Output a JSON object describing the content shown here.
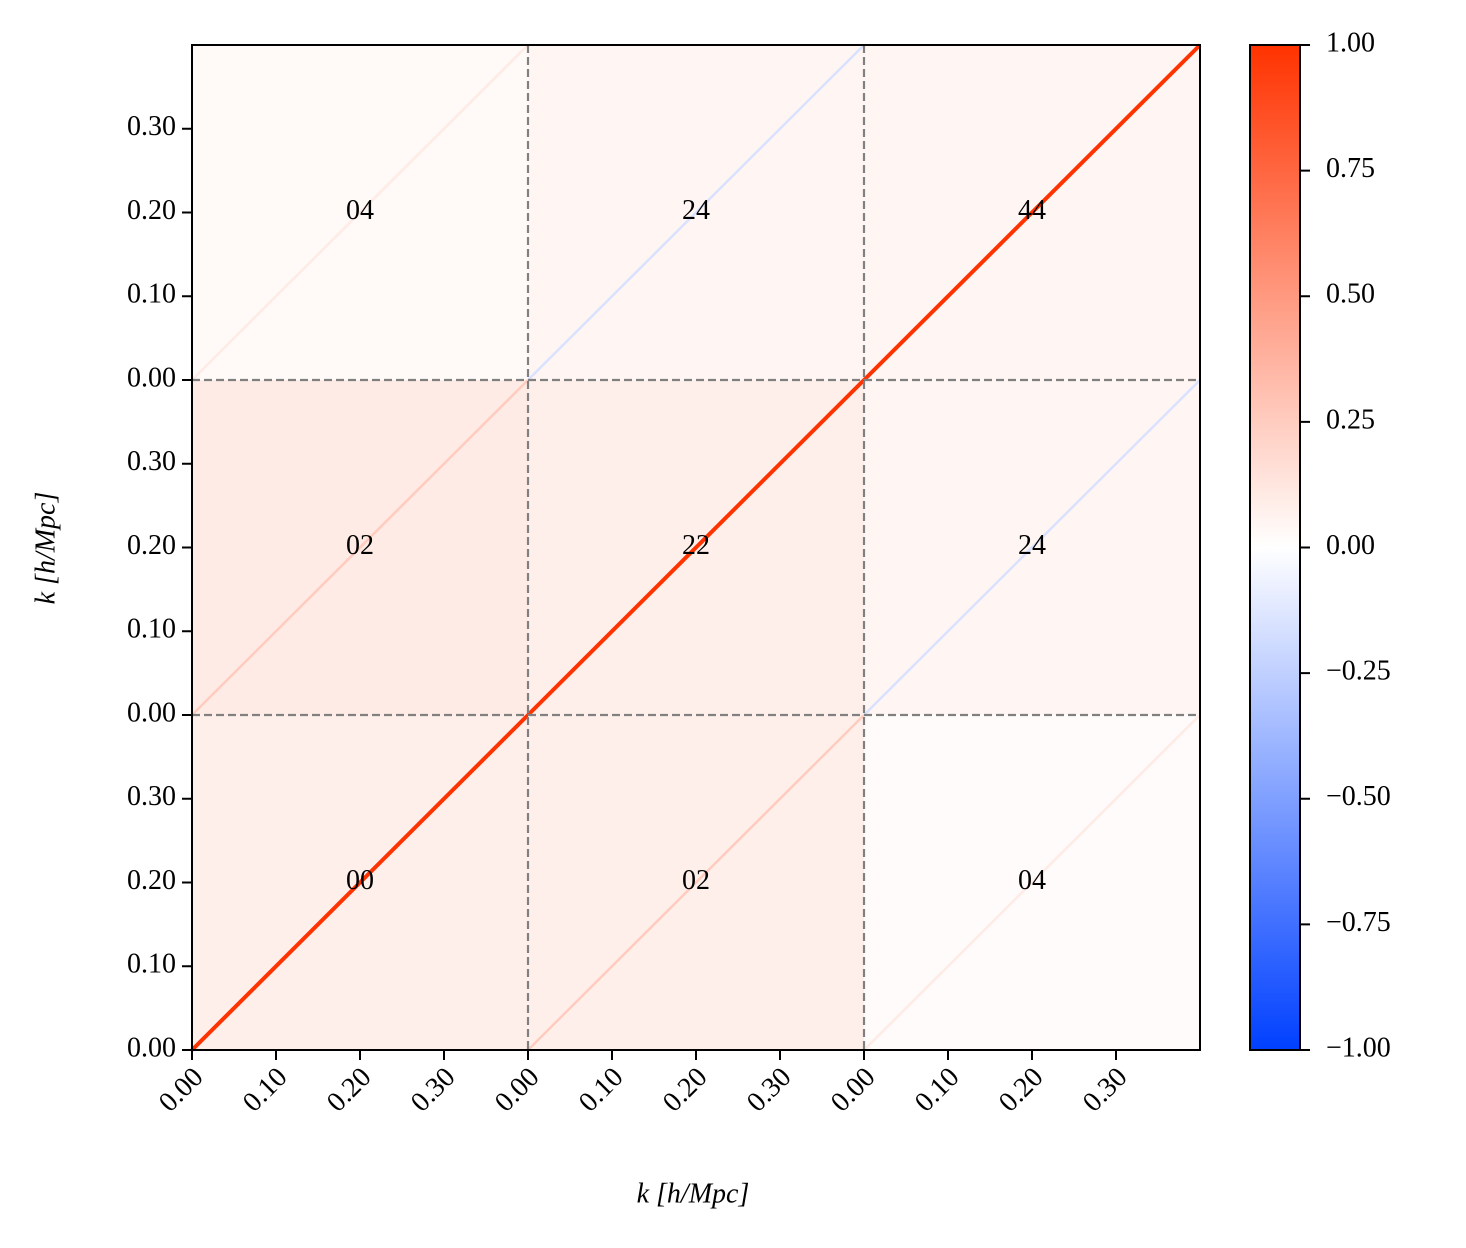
{
  "chart_data": {
    "type": "heatmap",
    "xlabel": "k [h/Mpc]",
    "ylabel": "k [h/Mpc]",
    "xlim": [
      0,
      0.4
    ],
    "ylim": [
      0,
      0.4
    ],
    "xticks": [
      {
        "value": 0,
        "label": "0.00"
      },
      {
        "value": 0.1,
        "label": "0.10"
      },
      {
        "value": 0.2,
        "label": "0.20"
      },
      {
        "value": 0.3,
        "label": "0.30"
      }
    ],
    "yticks": [
      {
        "value": 0,
        "label": "0.00"
      },
      {
        "value": 0.1,
        "label": "0.10"
      },
      {
        "value": 0.2,
        "label": "0.20"
      },
      {
        "value": 0.3,
        "label": "0.30"
      }
    ],
    "blocks": [
      [
        {
          "label": "04",
          "background": 0.03,
          "diagonal": 0.1
        },
        {
          "label": "24",
          "background": 0.05,
          "diagonal": -0.15
        },
        {
          "label": "44",
          "background": 0.05,
          "diagonal": 1
        }
      ],
      [
        {
          "label": "02",
          "background": 0.1,
          "diagonal": 0.25
        },
        {
          "label": "22",
          "background": 0.08,
          "diagonal": 1
        },
        {
          "label": "24",
          "background": 0.05,
          "diagonal": -0.15
        }
      ],
      [
        {
          "label": "00",
          "background": 0.08,
          "diagonal": 1
        },
        {
          "label": "02",
          "background": 0.08,
          "diagonal": 0.25
        },
        {
          "label": "04",
          "background": 0.02,
          "diagonal": 0.1
        }
      ]
    ],
    "clim": [
      -1,
      1
    ],
    "cticks": [
      {
        "value": 1,
        "label": "1.00"
      },
      {
        "value": 0.75,
        "label": "0.75"
      },
      {
        "value": 0.5,
        "label": "0.50"
      },
      {
        "value": 0.25,
        "label": "0.25"
      },
      {
        "value": 0,
        "label": "0.00"
      },
      {
        "value": -0.25,
        "label": "−0.25"
      },
      {
        "value": -0.5,
        "label": "−0.50"
      },
      {
        "value": -0.75,
        "label": "−0.75"
      },
      {
        "value": -1,
        "label": "−1.00"
      }
    ],
    "cmap": {
      "low": "#0040ff",
      "mid": "#ffffff",
      "high": "#ff3300"
    }
  }
}
